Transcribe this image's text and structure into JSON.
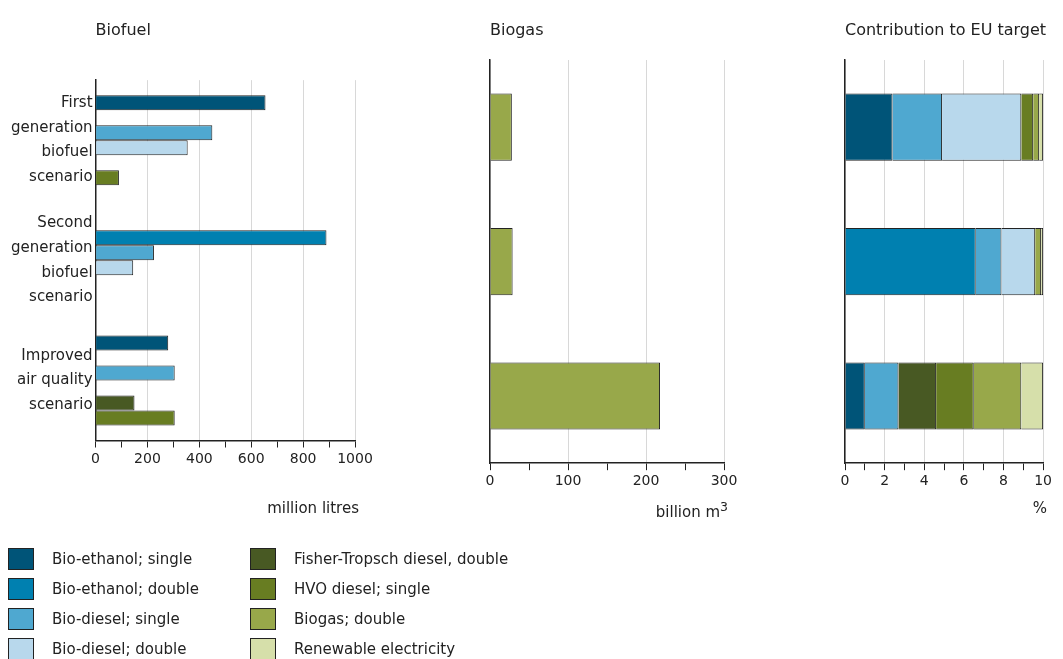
{
  "chart_data": [
    {
      "type": "bar",
      "title": "Biofuel",
      "xlabel": "million litres",
      "orientation": "horizontal",
      "grid": "x",
      "categories": [
        "First generation biofuel scenario",
        "Second generation biofuel scenario",
        "Improved air quality scenario"
      ],
      "series": [
        {
          "color": "#005478",
          "values": [
            655,
            null,
            280
          ]
        },
        {
          "color": "#0080b0",
          "values": [
            null,
            890,
            null
          ]
        },
        {
          "color": "#4fa8d0",
          "values": [
            450,
            225,
            305
          ]
        },
        {
          "color": "#b8d8ec",
          "values": [
            355,
            145,
            null
          ]
        },
        {
          "color": "#485923",
          "values": [
            null,
            null,
            150
          ]
        },
        {
          "color": "#687d22",
          "values": [
            90,
            null,
            305
          ]
        }
      ],
      "xlim": [
        0,
        1000
      ],
      "xticks": [
        0,
        {
          "value": 100,
          "label": null
        },
        200,
        {
          "value": 300,
          "label": null
        },
        400,
        {
          "value": 500,
          "label": null
        },
        600,
        {
          "value": 700,
          "label": null
        },
        800,
        {
          "value": 900,
          "label": null
        },
        1000
      ]
    },
    {
      "type": "bar",
      "title": "Biogas",
      "xlabel": "billion m$^{3}$",
      "orientation": "horizontal",
      "grid": "x",
      "categories": [
        null,
        null,
        null
      ],
      "values": [
        28,
        29,
        218
      ],
      "color": "#98a84a",
      "xlim": [
        0,
        300
      ],
      "xticks": [
        0,
        {
          "value": 50,
          "label": null
        },
        100,
        {
          "value": 150,
          "label": null
        },
        200,
        {
          "value": 250,
          "label": null
        },
        300
      ]
    },
    {
      "type": "bar",
      "title": "Contribution to EU target",
      "xlabel": "%",
      "orientation": "horizontal",
      "stacked": true,
      "grid": "x",
      "legend": "bottom",
      "categories": [
        null,
        null,
        null
      ],
      "series": [
        {
          "name": "Bio-ethanol; single",
          "color": "#005478",
          "values": [
            2.4,
            null,
            1.0
          ]
        },
        {
          "name": "Bio-ethanol; double",
          "color": "#0080b0",
          "values": [
            null,
            6.6,
            null
          ]
        },
        {
          "name": "Bio-diesel; single",
          "color": "#4fa8d0",
          "values": [
            2.5,
            1.3,
            1.7
          ]
        },
        {
          "name": "Bio-diesel; double",
          "color": "#b8d8ec",
          "values": [
            4.0,
            1.7,
            null
          ]
        },
        {
          "name": "Fisher-Tropsch diesel, double",
          "color": "#485923",
          "values": [
            null,
            null,
            1.9
          ]
        },
        {
          "name": "HVO diesel; single",
          "color": "#687d22",
          "values": [
            0.6,
            null,
            1.9
          ]
        },
        {
          "name": "Biogas; double",
          "color": "#98a84a",
          "values": [
            0.3,
            0.3,
            2.4
          ]
        },
        {
          "name": "Renewable electricity",
          "color": "#d6dfaa",
          "values": [
            0.2,
            0.1,
            1.1
          ]
        }
      ],
      "xlim": [
        0,
        10
      ],
      "xticks": [
        0,
        {
          "value": 1,
          "label": null
        },
        2,
        {
          "value": 3,
          "label": null
        },
        4,
        {
          "value": 5,
          "label": null
        },
        6,
        {
          "value": 7,
          "label": null
        },
        8,
        {
          "value": 9,
          "label": null
        },
        10
      ]
    }
  ]
}
